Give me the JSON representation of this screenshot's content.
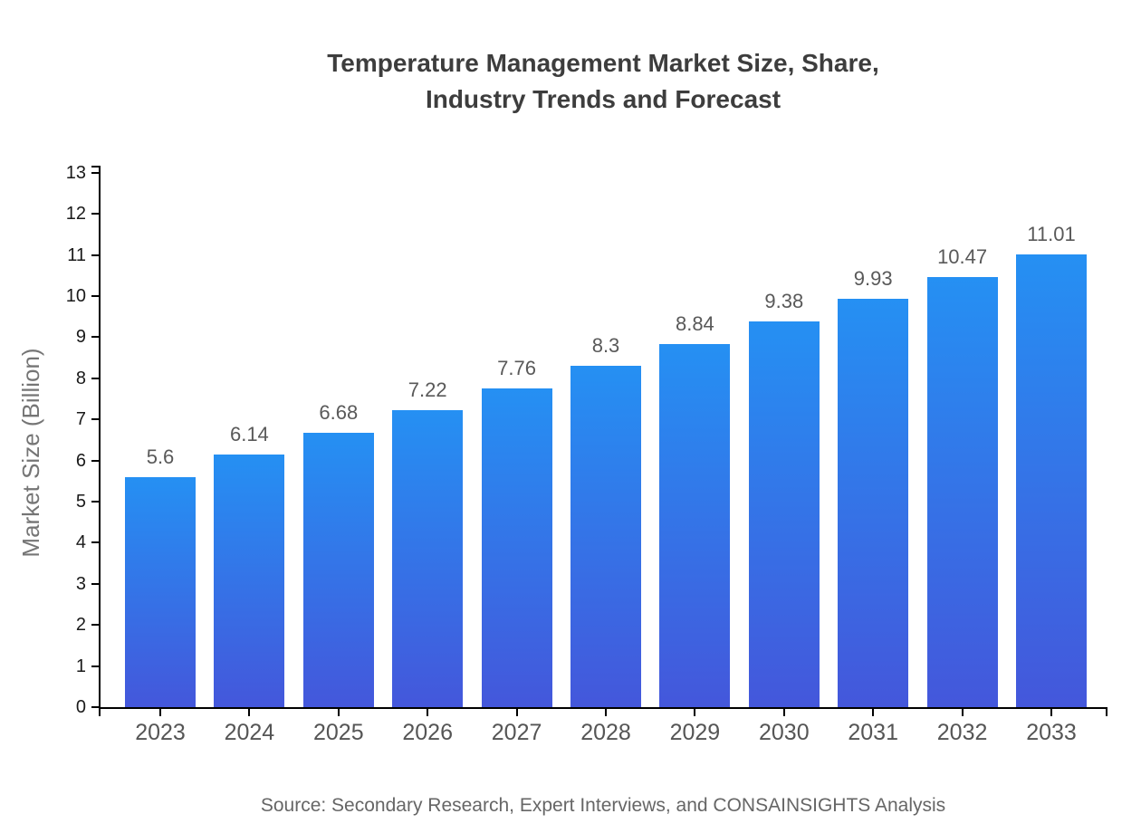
{
  "page": {
    "title_line1": "Temperature Management Market Size, Share,",
    "title_line2": "Industry Trends and Forecast",
    "source_note": "Source: Secondary Research, Expert Interviews, and CONSAINSIGHTS Analysis"
  },
  "colors": {
    "title": "#3d3d3d",
    "axis": "#000000",
    "y_tick_label": "#1a1a1a",
    "x_tick_label": "#555555",
    "value_label": "#595959",
    "y_axis_title": "#757575",
    "source": "#666666",
    "bar_gradient_top": "#2590F3",
    "bar_gradient_bottom": "#4457DB"
  },
  "chart_data": {
    "type": "bar",
    "title": "Temperature Management Market Size, Share, Industry Trends and Forecast",
    "categories": [
      "2023",
      "2024",
      "2025",
      "2026",
      "2027",
      "2028",
      "2029",
      "2030",
      "2031",
      "2032",
      "2033"
    ],
    "values": [
      5.6,
      6.14,
      6.68,
      7.22,
      7.76,
      8.3,
      8.84,
      9.38,
      9.93,
      10.47,
      11.01
    ],
    "xlabel": "",
    "ylabel": "Market Size (Billion)",
    "ylim": [
      0,
      13
    ],
    "ytick_step": 1,
    "grid": false,
    "legend": false,
    "value_labels_shown": true,
    "source": "Source: Secondary Research, Expert Interviews, and CONSAINSIGHTS Analysis"
  }
}
